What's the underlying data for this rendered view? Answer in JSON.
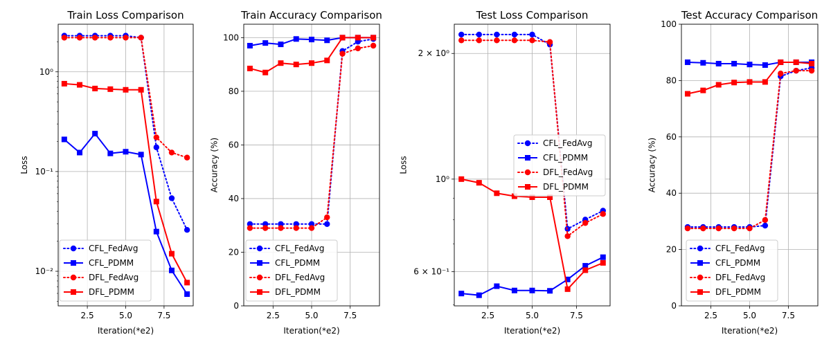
{
  "chart_data": [
    {
      "type": "line",
      "title": "Train Loss Comparison",
      "xlabel": "Iteration(*e2)",
      "ylabel": "Loss",
      "yscale": "log",
      "xlim": [
        0.6,
        9.4
      ],
      "ylim": [
        0.0045,
        3.0
      ],
      "xticks": [
        2.5,
        5.0,
        7.5
      ],
      "xtick_labels": [
        "2.5",
        "5.0",
        "7.5"
      ],
      "yticks": [
        0.01,
        0.1,
        1
      ],
      "ytick_labels": [
        "10⁻²",
        "10⁻¹",
        "10⁰"
      ],
      "grid": true,
      "legend_loc": "lower-left",
      "x": [
        1,
        2,
        3,
        4,
        5,
        6,
        7,
        8,
        9
      ],
      "series": [
        {
          "name": "CFL_FedAvg",
          "color": "#0000ff",
          "style": "dotted",
          "marker": "circle",
          "values": [
            2.3,
            2.3,
            2.3,
            2.3,
            2.3,
            2.2,
            0.175,
            0.054,
            0.026
          ]
        },
        {
          "name": "CFL_PDMM",
          "color": "#0000ff",
          "style": "solid",
          "marker": "square",
          "values": [
            0.21,
            0.155,
            0.24,
            0.152,
            0.158,
            0.148,
            0.025,
            0.0102,
            0.0059
          ]
        },
        {
          "name": "DFL_FedAvg",
          "color": "#ff0000",
          "style": "dotted",
          "marker": "circle",
          "values": [
            2.2,
            2.2,
            2.2,
            2.2,
            2.2,
            2.2,
            0.22,
            0.155,
            0.138
          ]
        },
        {
          "name": "DFL_PDMM",
          "color": "#ff0000",
          "style": "solid",
          "marker": "square",
          "values": [
            0.76,
            0.74,
            0.68,
            0.67,
            0.66,
            0.66,
            0.05,
            0.015,
            0.0077
          ]
        }
      ]
    },
    {
      "type": "line",
      "title": "Train Accuracy Comparison",
      "xlabel": "Iteration(*e2)",
      "ylabel": "Accuracy (%)",
      "yscale": "linear",
      "xlim": [
        0.6,
        9.4
      ],
      "ylim": [
        0,
        105
      ],
      "xticks": [
        2.5,
        5.0,
        7.5
      ],
      "xtick_labels": [
        "2.5",
        "5.0",
        "7.5"
      ],
      "yticks": [
        0,
        20,
        40,
        60,
        80,
        100
      ],
      "ytick_labels": [
        "0",
        "20",
        "40",
        "60",
        "80",
        "100"
      ],
      "grid": true,
      "legend_loc": "lower-left",
      "x": [
        1,
        2,
        3,
        4,
        5,
        6,
        7,
        8,
        9
      ],
      "series": [
        {
          "name": "CFL_FedAvg",
          "color": "#0000ff",
          "style": "dotted",
          "marker": "circle",
          "values": [
            30.5,
            30.5,
            30.5,
            30.5,
            30.5,
            30.5,
            95,
            98.5,
            99.5
          ]
        },
        {
          "name": "CFL_PDMM",
          "color": "#0000ff",
          "style": "solid",
          "marker": "square",
          "values": [
            97,
            98,
            97.5,
            99.5,
            99.3,
            99,
            100,
            100,
            100
          ]
        },
        {
          "name": "DFL_FedAvg",
          "color": "#ff0000",
          "style": "dotted",
          "marker": "circle",
          "values": [
            29,
            29,
            29,
            29,
            29,
            33,
            94,
            96,
            97
          ]
        },
        {
          "name": "DFL_PDMM",
          "color": "#ff0000",
          "style": "solid",
          "marker": "square",
          "values": [
            88.5,
            87,
            90.5,
            90,
            90.5,
            91.5,
            100,
            100,
            100
          ]
        }
      ]
    },
    {
      "type": "line",
      "title": "Test Loss Comparison",
      "xlabel": "Iteration(*e2)",
      "ylabel": "Loss",
      "yscale": "log",
      "xlim": [
        0.6,
        9.4
      ],
      "ylim": [
        0.497,
        2.35
      ],
      "xticks": [
        2.5,
        5.0,
        7.5
      ],
      "xtick_labels": [
        "2.5",
        "5.0",
        "7.5"
      ],
      "yticks": [
        0.6,
        1,
        2
      ],
      "ytick_labels": [
        "6 × 10⁻¹",
        "10⁰",
        "2 × 10⁰"
      ],
      "grid": true,
      "legend_loc": "center-right",
      "x": [
        1,
        2,
        3,
        4,
        5,
        6,
        7,
        8,
        9
      ],
      "series": [
        {
          "name": "CFL_FedAvg",
          "color": "#0000ff",
          "style": "dotted",
          "marker": "circle",
          "values": [
            2.22,
            2.22,
            2.22,
            2.22,
            2.22,
            2.1,
            0.76,
            0.8,
            0.84
          ]
        },
        {
          "name": "CFL_PDMM",
          "color": "#0000ff",
          "style": "solid",
          "marker": "square",
          "values": [
            0.532,
            0.527,
            0.554,
            0.541,
            0.541,
            0.54,
            0.575,
            0.62,
            0.65
          ]
        },
        {
          "name": "DFL_FedAvg",
          "color": "#ff0000",
          "style": "dotted",
          "marker": "circle",
          "values": [
            2.15,
            2.15,
            2.15,
            2.15,
            2.15,
            2.13,
            0.73,
            0.785,
            0.825
          ]
        },
        {
          "name": "DFL_PDMM",
          "color": "#ff0000",
          "style": "solid",
          "marker": "square",
          "values": [
            1.0,
            0.98,
            0.925,
            0.91,
            0.905,
            0.905,
            0.545,
            0.605,
            0.63
          ]
        }
      ]
    },
    {
      "type": "line",
      "title": "Test Accuracy Comparison",
      "xlabel": "Iteration(*e2)",
      "ylabel": "Accuracy (%)",
      "yscale": "linear",
      "xlim": [
        0.6,
        9.4
      ],
      "ylim": [
        0,
        100
      ],
      "xticks": [
        2.5,
        5.0,
        7.5
      ],
      "xtick_labels": [
        "2.5",
        "5.0",
        "7.5"
      ],
      "yticks": [
        0,
        20,
        40,
        60,
        80,
        100
      ],
      "ytick_labels": [
        "0",
        "20",
        "40",
        "60",
        "80",
        "100"
      ],
      "grid": true,
      "legend_loc": "lower-left",
      "x": [
        1,
        2,
        3,
        4,
        5,
        6,
        7,
        8,
        9
      ],
      "series": [
        {
          "name": "CFL_FedAvg",
          "color": "#0000ff",
          "style": "dotted",
          "marker": "circle",
          "values": [
            28,
            28,
            28,
            28,
            28,
            28.5,
            81.5,
            83.5,
            84.5
          ]
        },
        {
          "name": "CFL_PDMM",
          "color": "#0000ff",
          "style": "solid",
          "marker": "square",
          "values": [
            86.5,
            86.3,
            86,
            86,
            85.7,
            85.5,
            86.5,
            86.5,
            86.5
          ]
        },
        {
          "name": "DFL_FedAvg",
          "color": "#ff0000",
          "style": "dotted",
          "marker": "circle",
          "values": [
            27.5,
            27.5,
            27.5,
            27.5,
            27.5,
            30.5,
            82.5,
            83.5,
            83.5
          ]
        },
        {
          "name": "DFL_PDMM",
          "color": "#ff0000",
          "style": "solid",
          "marker": "square",
          "values": [
            75.3,
            76.5,
            78.5,
            79.3,
            79.5,
            79.5,
            86.5,
            86.5,
            86
          ]
        }
      ]
    }
  ]
}
